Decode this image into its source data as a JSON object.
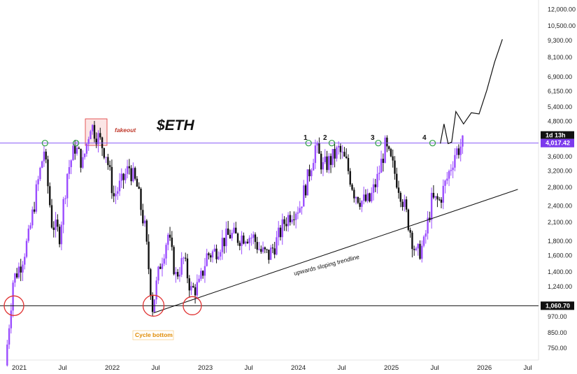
{
  "chart_data": {
    "type": "candlestick",
    "title": "$ETH",
    "xlabel": "",
    "ylabel": "",
    "y_scale": "log",
    "ylim": [
      680,
      12600
    ],
    "price_ticks": [
      "12,000.00",
      "10,500.00",
      "9,300.00",
      "8,100.00",
      "6,900.00",
      "6,150.00",
      "5,400.00",
      "4,800.00",
      "3,600.00",
      "3,200.00",
      "2,800.00",
      "2,400.00",
      "2,100.00",
      "1,800.00",
      "1,600.00",
      "1,400.00",
      "1,240.00",
      "970.00",
      "850.00",
      "750.00"
    ],
    "date_ticks": [
      "2021",
      "Jul",
      "2022",
      "Jul",
      "2023",
      "Jul",
      "2024",
      "Jul",
      "2025",
      "Jul",
      "2026",
      "Jul"
    ],
    "current_price": {
      "value": 4017.42,
      "label": "4,017.42",
      "countdown": "1d 13h"
    },
    "support_level": {
      "value": 1060.7,
      "label": "1,060.70"
    },
    "resistance_level": {
      "value": 4017.42
    },
    "touch_labels": [
      "1",
      "2",
      "3",
      "4"
    ],
    "annotations": {
      "fakeout": "fakeout",
      "cycle_bottom": "Cycle bottom",
      "trendline": "upwards sloping trendline"
    },
    "trendline": {
      "from": {
        "date": "2022-07",
        "price": 1000
      },
      "to": {
        "date": "2026-06",
        "price": 2750
      }
    },
    "projection": [
      {
        "date": "2025-08",
        "price": 4000
      },
      {
        "date": "2025-08-15",
        "price": 4700
      },
      {
        "date": "2025-09",
        "price": 4000
      },
      {
        "date": "2025-09-15",
        "price": 4050
      },
      {
        "date": "2025-10",
        "price": 5200
      },
      {
        "date": "2025-11",
        "price": 4700
      },
      {
        "date": "2025-12",
        "price": 5150
      },
      {
        "date": "2026-01",
        "price": 5100
      },
      {
        "date": "2026-02",
        "price": 6200
      },
      {
        "date": "2026-03",
        "price": 7800
      },
      {
        "date": "2026-04",
        "price": 9400
      }
    ],
    "weekly_closes": [
      {
        "month": "2020-12",
        "price": 650
      },
      {
        "month": "2021-01",
        "price": 1300
      },
      {
        "month": "2021-02",
        "price": 1500
      },
      {
        "month": "2021-03",
        "price": 1850
      },
      {
        "month": "2021-04",
        "price": 2700
      },
      {
        "month": "2021-05",
        "price": 3800
      },
      {
        "month": "2021-06",
        "price": 2100
      },
      {
        "month": "2021-07",
        "price": 1900
      },
      {
        "month": "2021-08",
        "price": 3150
      },
      {
        "month": "2021-09",
        "price": 3900
      },
      {
        "month": "2021-10",
        "price": 3400
      },
      {
        "month": "2021-11",
        "price": 4700
      },
      {
        "month": "2021-12",
        "price": 4200
      },
      {
        "month": "2022-01",
        "price": 3700
      },
      {
        "month": "2022-02",
        "price": 2600
      },
      {
        "month": "2022-03",
        "price": 2900
      },
      {
        "month": "2022-04",
        "price": 3300
      },
      {
        "month": "2022-05",
        "price": 2800
      },
      {
        "month": "2022-06",
        "price": 2000
      },
      {
        "month": "2022-07",
        "price": 1050
      },
      {
        "month": "2022-08",
        "price": 1500
      },
      {
        "month": "2022-09",
        "price": 1900
      },
      {
        "month": "2022-10",
        "price": 1350
      },
      {
        "month": "2022-11",
        "price": 1550
      },
      {
        "month": "2022-12",
        "price": 1200
      },
      {
        "month": "2023-01",
        "price": 1250
      },
      {
        "month": "2023-02",
        "price": 1600
      },
      {
        "month": "2023-03",
        "price": 1650
      },
      {
        "month": "2023-04",
        "price": 1800
      },
      {
        "month": "2023-05",
        "price": 1900
      },
      {
        "month": "2023-06",
        "price": 1850
      },
      {
        "month": "2023-07",
        "price": 1900
      },
      {
        "month": "2023-08",
        "price": 1850
      },
      {
        "month": "2023-09",
        "price": 1650
      },
      {
        "month": "2023-10",
        "price": 1600
      },
      {
        "month": "2023-11",
        "price": 1800
      },
      {
        "month": "2023-12",
        "price": 2100
      },
      {
        "month": "2024-01",
        "price": 2300
      },
      {
        "month": "2024-02",
        "price": 2400
      },
      {
        "month": "2024-03",
        "price": 3000
      },
      {
        "month": "2024-04",
        "price": 3900
      },
      {
        "month": "2024-05",
        "price": 3300
      },
      {
        "month": "2024-06",
        "price": 3500
      },
      {
        "month": "2024-07",
        "price": 3800
      },
      {
        "month": "2024-08",
        "price": 3400
      },
      {
        "month": "2024-09",
        "price": 2700
      },
      {
        "month": "2024-10",
        "price": 2500
      },
      {
        "month": "2024-11",
        "price": 2500
      },
      {
        "month": "2024-12",
        "price": 3000
      },
      {
        "month": "2025-01",
        "price": 3900
      },
      {
        "month": "2025-02",
        "price": 3300
      },
      {
        "month": "2025-03",
        "price": 2700
      },
      {
        "month": "2025-04",
        "price": 2100
      },
      {
        "month": "2025-05",
        "price": 1600
      },
      {
        "month": "2025-06",
        "price": 1750
      },
      {
        "month": "2025-07",
        "price": 2500
      },
      {
        "month": "2025-08",
        "price": 2500
      },
      {
        "month": "2025-09",
        "price": 3000
      },
      {
        "month": "2025-10",
        "price": 3700
      },
      {
        "month": "2025-11",
        "price": 4000
      }
    ],
    "grid": false,
    "legend": "none"
  },
  "colors": {
    "up": "#9b4dff",
    "down": "#111111",
    "resistance": "#8a5cf6",
    "support": "#111111",
    "price_tag": "#7c3aed",
    "support_tag": "#111111",
    "circle": "#e03131",
    "touch": "#2f9e44",
    "fakeout_box": "#f4b4b4"
  }
}
